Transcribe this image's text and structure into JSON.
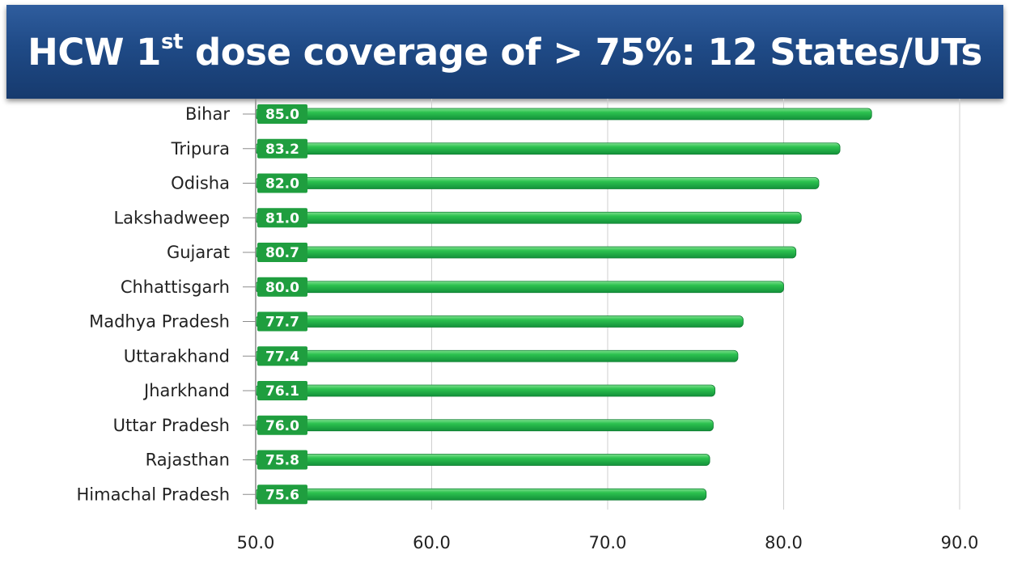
{
  "title": {
    "prefix": "HCW 1",
    "superscript": "st",
    "suffix": " dose coverage of > 75%: 12 States/UTs"
  },
  "chart_data": {
    "type": "bar",
    "orientation": "horizontal",
    "categories": [
      "Bihar",
      "Tripura",
      "Odisha",
      "Lakshadweep",
      "Gujarat",
      "Chhattisgarh",
      "Madhya Pradesh",
      "Uttarakhand",
      "Jharkhand",
      "Uttar Pradesh",
      "Rajasthan",
      "Himachal Pradesh"
    ],
    "values": [
      85.0,
      83.2,
      82.0,
      81.0,
      80.7,
      80.0,
      77.7,
      77.4,
      76.1,
      76.0,
      75.8,
      75.6
    ],
    "value_labels": [
      "85.0",
      "83.2",
      "82.0",
      "81.0",
      "80.7",
      "80.0",
      "77.7",
      "77.4",
      "76.1",
      "76.0",
      "75.8",
      "75.6"
    ],
    "xlim": [
      50,
      90
    ],
    "xticks": [
      50,
      60,
      70,
      80,
      90
    ],
    "xtick_labels": [
      "50.0",
      "60.0",
      "70.0",
      "80.0",
      "90.0"
    ],
    "grid": true,
    "bar_color": "#22b24c",
    "label_box_color": "#1f9e3f"
  }
}
